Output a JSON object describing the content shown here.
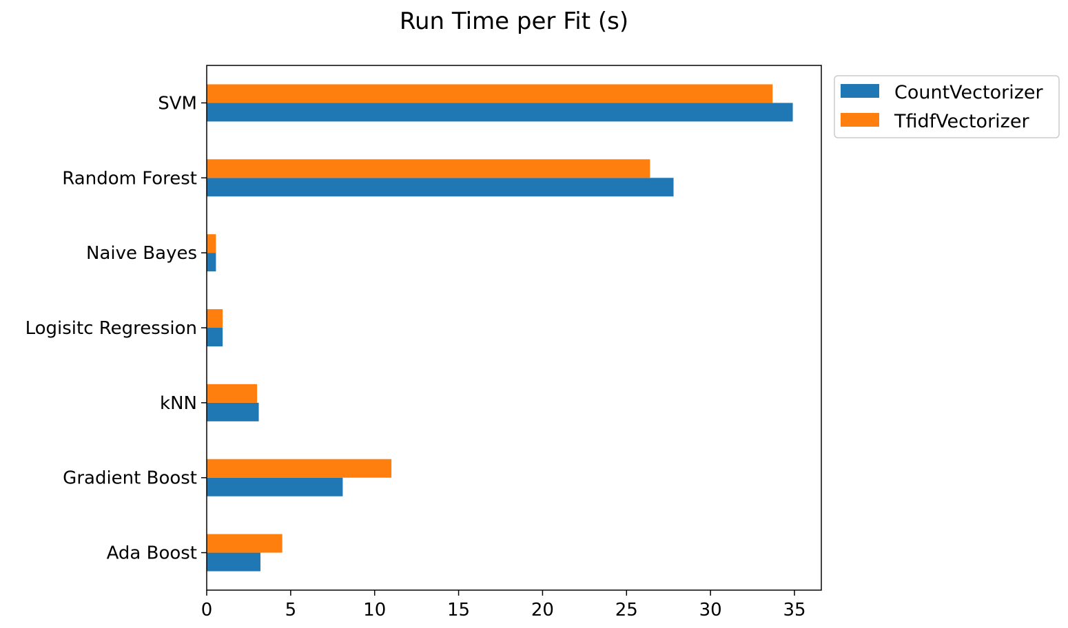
{
  "colors": {
    "count": "#1f77b4",
    "tfidf": "#ff7f0e"
  },
  "chart_data": {
    "type": "bar",
    "orientation": "horizontal",
    "title": "Run Time per Fit (s)",
    "xlabel": "",
    "ylabel": "",
    "categories": [
      "Ada Boost",
      "Gradient Boost",
      "kNN",
      "Logisitc Regression",
      "Naive Bayes",
      "Random Forest",
      "SVM"
    ],
    "series": [
      {
        "name": "CountVectorizer",
        "color": "#1f77b4",
        "values": [
          3.2,
          8.1,
          3.1,
          0.95,
          0.55,
          27.8,
          34.9
        ]
      },
      {
        "name": "TfidfVectorizer",
        "color": "#ff7f0e",
        "values": [
          4.5,
          11.0,
          3.0,
          0.95,
          0.55,
          26.4,
          33.7
        ]
      }
    ],
    "xlim": [
      0,
      36.6
    ],
    "xticks": [
      0,
      5,
      10,
      15,
      20,
      25,
      30,
      35
    ],
    "legend": {
      "placement": "outside-top-right",
      "entries": [
        "CountVectorizer",
        "TfidfVectorizer"
      ]
    },
    "grid": false
  }
}
